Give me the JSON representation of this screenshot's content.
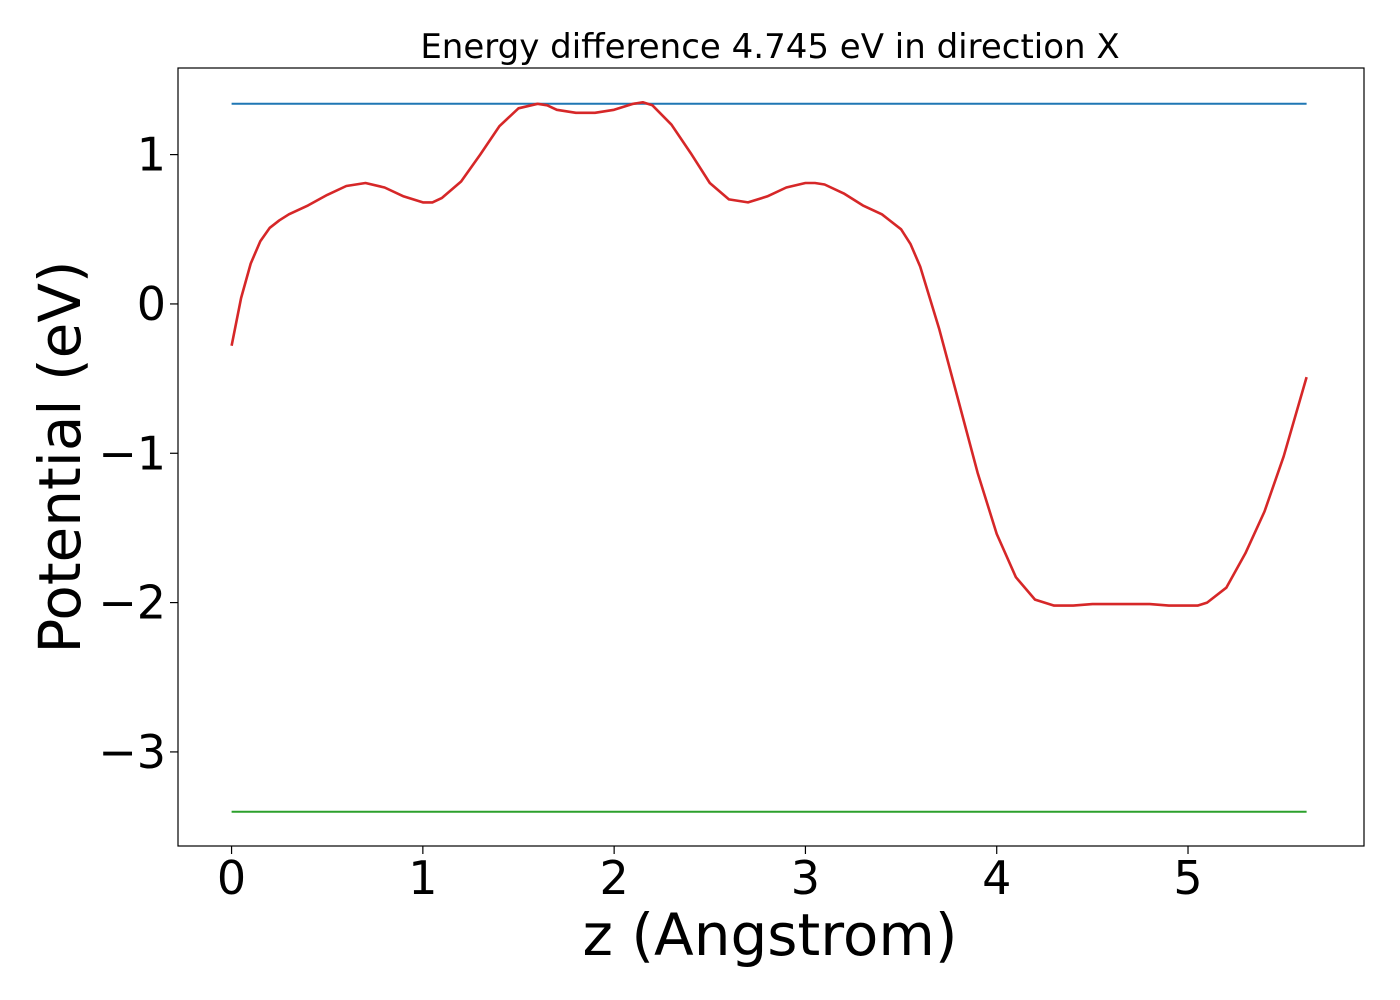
{
  "chart_data": {
    "type": "line",
    "title": "Energy difference 4.745 eV in direction X",
    "xlabel": "z (Angstrom)",
    "ylabel": "Potential (eV)",
    "xlim": [
      -0.28,
      5.92
    ],
    "ylim": [
      -3.63,
      1.58
    ],
    "xticks": [
      0,
      1,
      2,
      3,
      4,
      5
    ],
    "xtick_labels": [
      "0",
      "1",
      "2",
      "3",
      "4",
      "5"
    ],
    "yticks": [
      1,
      0,
      -1,
      -2,
      -3
    ],
    "ytick_labels": [
      "1",
      "0",
      "−1",
      "−2",
      "−3"
    ],
    "grid": false,
    "series": [
      {
        "color": "#d62728",
        "x": [
          0.0,
          0.05,
          0.1,
          0.15,
          0.2,
          0.25,
          0.3,
          0.4,
          0.5,
          0.6,
          0.7,
          0.8,
          0.9,
          1.0,
          1.05,
          1.1,
          1.2,
          1.3,
          1.4,
          1.5,
          1.6,
          1.65,
          1.7,
          1.8,
          1.9,
          2.0,
          2.1,
          2.15,
          2.2,
          2.3,
          2.4,
          2.5,
          2.6,
          2.7,
          2.8,
          2.9,
          3.0,
          3.05,
          3.1,
          3.2,
          3.3,
          3.4,
          3.5,
          3.55,
          3.6,
          3.7,
          3.8,
          3.9,
          4.0,
          4.1,
          4.2,
          4.3,
          4.4,
          4.5,
          4.6,
          4.7,
          4.8,
          4.9,
          5.0,
          5.05,
          5.1,
          5.2,
          5.3,
          5.4,
          5.5,
          5.62
        ],
        "y": [
          -0.28,
          0.04,
          0.27,
          0.42,
          0.51,
          0.56,
          0.6,
          0.66,
          0.73,
          0.79,
          0.81,
          0.78,
          0.72,
          0.68,
          0.68,
          0.71,
          0.82,
          1.0,
          1.19,
          1.31,
          1.34,
          1.33,
          1.3,
          1.28,
          1.28,
          1.3,
          1.34,
          1.35,
          1.33,
          1.2,
          1.01,
          0.81,
          0.7,
          0.68,
          0.72,
          0.78,
          0.81,
          0.81,
          0.8,
          0.74,
          0.66,
          0.6,
          0.5,
          0.4,
          0.25,
          -0.17,
          -0.65,
          -1.13,
          -1.54,
          -1.83,
          -1.98,
          -2.02,
          -2.02,
          -2.01,
          -2.01,
          -2.01,
          -2.01,
          -2.02,
          -2.02,
          -2.02,
          -2.0,
          -1.9,
          -1.67,
          -1.39,
          -1.02,
          -0.49
        ]
      },
      {
        "color": "#1f77b4",
        "x": [
          0.0,
          5.62
        ],
        "y": [
          1.34,
          1.34
        ]
      },
      {
        "color": "#2ca02c",
        "x": [
          0.0,
          5.62
        ],
        "y": [
          -3.4,
          -3.4
        ]
      }
    ]
  }
}
